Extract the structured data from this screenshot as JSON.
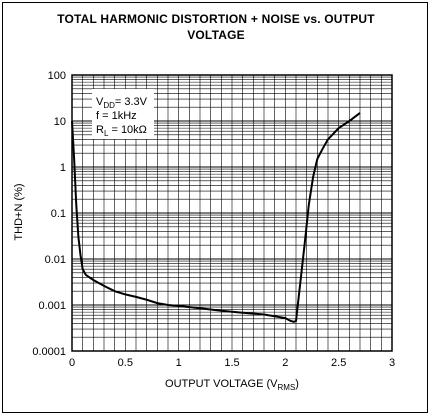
{
  "chart_data": {
    "type": "line",
    "title_line1": "TOTAL HARMONIC DISTORTION + NOISE vs. OUTPUT",
    "title_line2": "VOLTAGE",
    "xlabel_main": "OUTPUT VOLTAGE (V",
    "xlabel_sub": "RMS",
    "xlabel_end": ")",
    "ylabel": "THD+N (%)",
    "xlim": [
      0,
      3
    ],
    "ylim": [
      0.0001,
      100
    ],
    "yscale": "log",
    "grid": true,
    "x_ticks": [
      "0",
      "0.5",
      "1",
      "1.5",
      "2",
      "2.5",
      "3"
    ],
    "y_ticks": [
      "0.0001",
      "0.001",
      "0.01",
      "0.1",
      "1",
      "10",
      "100"
    ],
    "annotation": {
      "vdd_label": "V",
      "vdd_sub": "DD",
      "vdd_value": "= 3.3V",
      "freq": "f = 1kHz",
      "rl_label": "R",
      "rl_sub": "L",
      "rl_value": " = 10kΩ"
    },
    "series": [
      {
        "x": [
          0.0,
          0.02,
          0.04,
          0.06,
          0.08,
          0.1,
          0.13,
          0.2,
          0.3,
          0.4,
          0.5,
          0.6,
          0.7,
          0.8,
          0.9,
          1.0,
          1.2,
          1.4,
          1.6,
          1.8,
          2.0,
          2.05,
          2.08,
          2.1,
          2.14,
          2.18,
          2.22,
          2.26,
          2.3,
          2.35,
          2.4,
          2.5,
          2.6,
          2.7
        ],
        "y": [
          10,
          1.5,
          0.15,
          0.03,
          0.012,
          0.006,
          0.0045,
          0.0035,
          0.0026,
          0.002,
          0.0017,
          0.0015,
          0.0013,
          0.0011,
          0.001,
          0.00095,
          0.00085,
          0.00075,
          0.00068,
          0.00062,
          0.00052,
          0.00045,
          0.00043,
          0.00045,
          0.003,
          0.02,
          0.15,
          0.6,
          1.5,
          2.5,
          4,
          7,
          10,
          15
        ]
      }
    ]
  }
}
